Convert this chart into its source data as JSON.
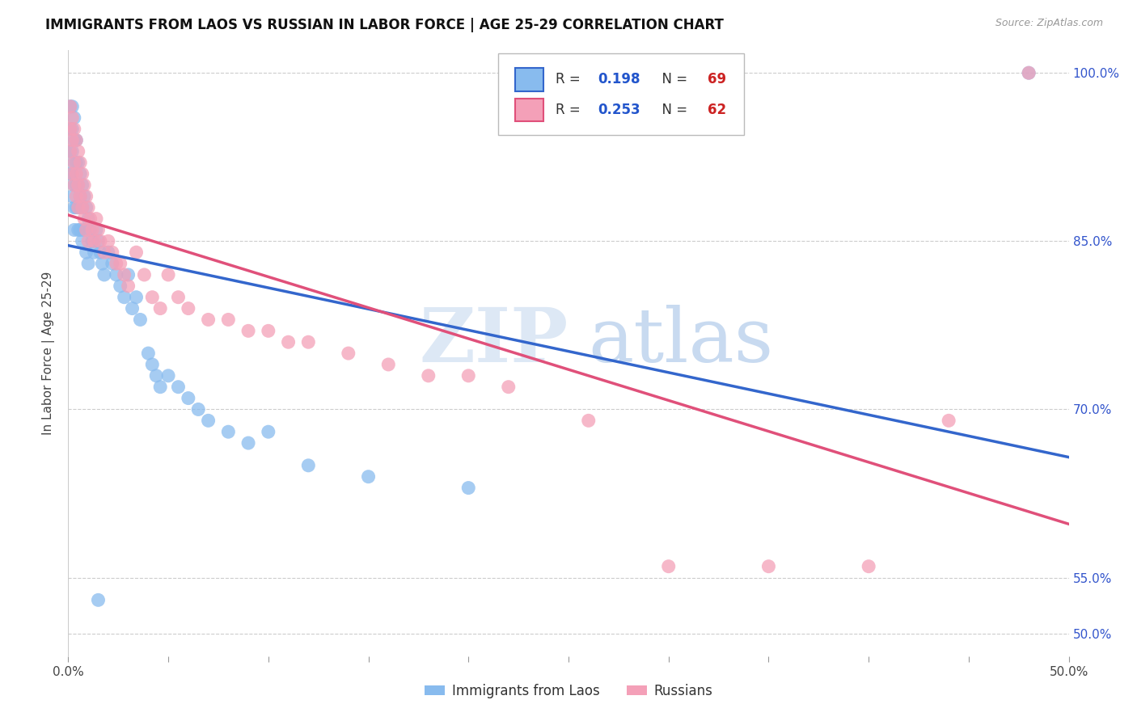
{
  "title": "IMMIGRANTS FROM LAOS VS RUSSIAN IN LABOR FORCE | AGE 25-29 CORRELATION CHART",
  "source": "Source: ZipAtlas.com",
  "ylabel": "In Labor Force | Age 25-29",
  "xlim": [
    0.0,
    0.5
  ],
  "ylim": [
    0.48,
    1.02
  ],
  "laos_R": 0.198,
  "laos_N": 69,
  "russian_R": 0.253,
  "russian_N": 62,
  "laos_color": "#88bbee",
  "russian_color": "#f4a0b8",
  "laos_line_color": "#3366cc",
  "russian_line_color": "#e0507a",
  "legend_label_laos": "Immigrants from Laos",
  "legend_label_russian": "Russians",
  "watermark_zip": "ZIP",
  "watermark_atlas": "atlas",
  "laos_x": [
    0.001,
    0.001,
    0.001,
    0.001,
    0.002,
    0.002,
    0.002,
    0.002,
    0.002,
    0.003,
    0.003,
    0.003,
    0.003,
    0.003,
    0.003,
    0.004,
    0.004,
    0.004,
    0.004,
    0.005,
    0.005,
    0.005,
    0.005,
    0.006,
    0.006,
    0.006,
    0.007,
    0.007,
    0.007,
    0.008,
    0.008,
    0.009,
    0.009,
    0.01,
    0.01,
    0.011,
    0.012,
    0.013,
    0.014,
    0.015,
    0.016,
    0.017,
    0.018,
    0.02,
    0.022,
    0.024,
    0.026,
    0.028,
    0.03,
    0.032,
    0.034,
    0.036,
    0.04,
    0.042,
    0.044,
    0.046,
    0.05,
    0.055,
    0.06,
    0.065,
    0.07,
    0.08,
    0.09,
    0.1,
    0.12,
    0.15,
    0.2,
    0.015,
    0.48
  ],
  "laos_y": [
    0.97,
    0.95,
    0.93,
    0.91,
    0.97,
    0.95,
    0.93,
    0.91,
    0.89,
    0.96,
    0.94,
    0.92,
    0.9,
    0.88,
    0.86,
    0.94,
    0.92,
    0.9,
    0.88,
    0.92,
    0.9,
    0.88,
    0.86,
    0.91,
    0.89,
    0.86,
    0.9,
    0.88,
    0.85,
    0.89,
    0.86,
    0.88,
    0.84,
    0.87,
    0.83,
    0.86,
    0.85,
    0.84,
    0.86,
    0.85,
    0.84,
    0.83,
    0.82,
    0.84,
    0.83,
    0.82,
    0.81,
    0.8,
    0.82,
    0.79,
    0.8,
    0.78,
    0.75,
    0.74,
    0.73,
    0.72,
    0.73,
    0.72,
    0.71,
    0.7,
    0.69,
    0.68,
    0.67,
    0.68,
    0.65,
    0.64,
    0.63,
    0.53,
    1.0
  ],
  "russian_x": [
    0.001,
    0.001,
    0.001,
    0.002,
    0.002,
    0.002,
    0.003,
    0.003,
    0.003,
    0.004,
    0.004,
    0.004,
    0.005,
    0.005,
    0.005,
    0.006,
    0.006,
    0.007,
    0.007,
    0.008,
    0.008,
    0.009,
    0.009,
    0.01,
    0.01,
    0.011,
    0.012,
    0.013,
    0.014,
    0.015,
    0.016,
    0.018,
    0.02,
    0.022,
    0.024,
    0.026,
    0.028,
    0.03,
    0.034,
    0.038,
    0.042,
    0.046,
    0.05,
    0.055,
    0.06,
    0.07,
    0.08,
    0.09,
    0.1,
    0.11,
    0.12,
    0.14,
    0.16,
    0.18,
    0.2,
    0.22,
    0.26,
    0.3,
    0.35,
    0.4,
    0.44,
    0.48
  ],
  "russian_y": [
    0.97,
    0.95,
    0.93,
    0.96,
    0.94,
    0.91,
    0.95,
    0.92,
    0.9,
    0.94,
    0.91,
    0.89,
    0.93,
    0.9,
    0.88,
    0.92,
    0.89,
    0.91,
    0.88,
    0.9,
    0.87,
    0.89,
    0.86,
    0.88,
    0.85,
    0.87,
    0.86,
    0.85,
    0.87,
    0.86,
    0.85,
    0.84,
    0.85,
    0.84,
    0.83,
    0.83,
    0.82,
    0.81,
    0.84,
    0.82,
    0.8,
    0.79,
    0.82,
    0.8,
    0.79,
    0.78,
    0.78,
    0.77,
    0.77,
    0.76,
    0.76,
    0.75,
    0.74,
    0.73,
    0.73,
    0.72,
    0.69,
    0.56,
    0.56,
    0.56,
    0.69,
    1.0
  ],
  "right_ytick_positions": [
    0.5,
    0.55,
    0.7,
    0.85,
    1.0
  ],
  "right_ytick_labels": [
    "50.0%",
    "55.0%",
    "70.0%",
    "85.0%",
    "100.0%"
  ]
}
